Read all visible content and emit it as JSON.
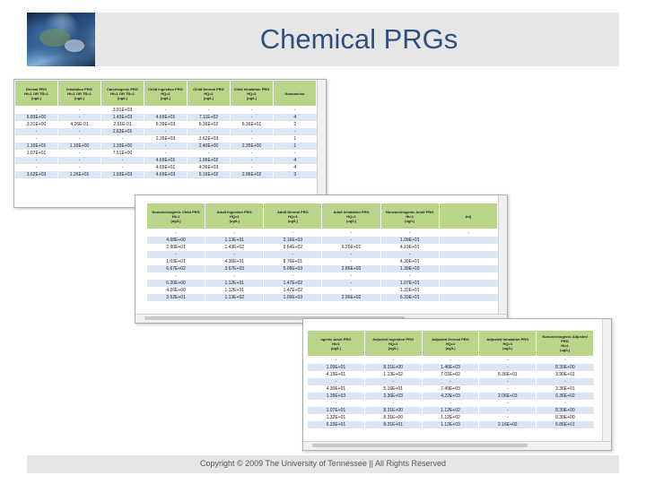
{
  "slide": {
    "title": "Chemical PRGs",
    "footer": "Copyright © 2009 The University of Tennessee || All Rights Reserved"
  },
  "table1": {
    "headers": [
      [
        "Dermal PRG",
        "HI=1 OR TR=1",
        "(ug/L)"
      ],
      [
        "Inhalation PRG",
        "HI=1 OR TR=1",
        "(ug/L)"
      ],
      [
        "Carcinogenic PRG",
        "HI=1 OR TR=1",
        "(ug/L)"
      ],
      [
        "Child Ingestion PRG",
        "HQ=1",
        "(ug/L)"
      ],
      [
        "Child Dermal PRG",
        "HQ=1",
        "(ug/L)"
      ],
      [
        "Child Inhalation PRG",
        "HQ=1",
        "(ug/L)"
      ],
      [
        "Noncarcino",
        "",
        ""
      ]
    ],
    "rows": [
      [
        "-",
        "-",
        "3.91E+03",
        "-",
        "-",
        "-",
        "-"
      ],
      [
        "6.83E+00",
        "-",
        "1.43E+03",
        "4.69E+01",
        "7.11E+02",
        "-",
        "4"
      ],
      [
        "3.31E+00",
        "4.26E-01",
        "2.51E-01",
        "6.39E+03",
        "6.36E+02",
        "6.36E+01",
        "2"
      ],
      [
        "-",
        "-",
        "2.63E+01",
        "-",
        "-",
        "-",
        "-"
      ],
      [
        "-",
        "-",
        "-",
        "2.35E+03",
        "3.62E+03",
        "-",
        "1"
      ],
      [
        "1.10E+01",
        "1.10E+00",
        "1.33E+00",
        "-",
        "2.40E+00",
        "2.35E+00",
        "1"
      ],
      [
        "1.07E+01",
        "-",
        "7.51E+00",
        "-",
        "-",
        "-",
        "-"
      ],
      [
        "-",
        "-",
        "-",
        "4.69E+01",
        "1.96E+02",
        "-",
        "4"
      ],
      [
        "-",
        "-",
        "-",
        "4.69E+01",
        "4.36E+03",
        "-",
        "4"
      ],
      [
        "3.62E+03",
        "1.26E+01",
        "1.93E+03",
        "4.69E+03",
        "5.16E+02",
        "2.96E+02",
        "3"
      ]
    ]
  },
  "table2": {
    "headers": [
      [
        "Noncarcinogenic Child PRG",
        "HI=1",
        "(ug/L)"
      ],
      [
        "Adult Ingestion PRG",
        "HQ=1",
        "(ug/L)"
      ],
      [
        "Adult Dermal PRG",
        "HQ=1",
        "(ug/L)"
      ],
      [
        "Adult Inhalation PRG",
        "HQ=1",
        "(ug/L)"
      ],
      [
        "Noncarcinogenic Adult PRG",
        "HI=1",
        "(ug/L)"
      ],
      [
        "Adj",
        "",
        ""
      ]
    ],
    "rows": [
      [
        "-",
        "-",
        "-",
        "-",
        "-",
        "-"
      ],
      [
        "4.68E+00",
        "1.13E+01",
        "2.16E+03",
        "-",
        "1.09E+01",
        ""
      ],
      [
        "2.90E+01",
        "1.43E+02",
        "9.64E+02",
        "6.26E+01",
        "4.19E+01",
        ""
      ],
      [
        "-",
        "-",
        "-",
        "-",
        "-",
        ""
      ],
      [
        "1.03E+01",
        "4.36E+01",
        "8.76E+01",
        "-",
        "4.30E+01",
        ""
      ],
      [
        "6.67E+02",
        "3.67E+03",
        "5.08E+03",
        "2.86E+03",
        "1.39E+03",
        ""
      ],
      [
        "-",
        "-",
        "-",
        "-",
        "-",
        ""
      ],
      [
        "6.20E+00",
        "1.12E+01",
        "1.47E+02",
        "-",
        "1.07E+01",
        ""
      ],
      [
        "4.26E+00",
        "1.12E+01",
        "1.47E+02",
        "-",
        "1.32E+01",
        ""
      ],
      [
        "3.52E+01",
        "1.13E+02",
        "1.09E+03",
        "2.96E+02",
        "6.33E+01",
        ""
      ]
    ]
  },
  "table3": {
    "headers": [
      [
        "ogenic Adult PRG",
        "HI=1",
        "(ug/L)"
      ],
      [
        "Adjusted Ingestion PRG",
        "HQ=1",
        "(ug/L)"
      ],
      [
        "Adjusted Dermal PRG",
        "HQ=1",
        "(ug/L)"
      ],
      [
        "Adjusted Inhalation PRG",
        "HQ=1",
        "(ug/L)"
      ],
      [
        "Noncarcinogenic Adjusted PRG",
        "HI=1",
        "(ug/L)"
      ]
    ],
    "rows": [
      [
        "-",
        "-",
        "-",
        "-",
        "-"
      ],
      [
        "1.09E+01",
        "8.31E+00",
        "1.46E+03",
        "-",
        "8.30E+00"
      ],
      [
        "4.19E+01",
        "1.13E+02",
        "7.01E+02",
        "6.36E+01",
        "3.90E+01"
      ],
      [
        "-",
        "-",
        "-",
        "-",
        "-"
      ],
      [
        "4.30E+01",
        "5.16E+01",
        "7.49E+03",
        "-",
        "3.36E+01"
      ],
      [
        "1.39E+03",
        "2.36E+03",
        "4.22E+03",
        "2.06E+03",
        "6.36E+02"
      ],
      [
        "-",
        "-",
        "-",
        "-",
        "-"
      ],
      [
        "1.07E+01",
        "8.31E+00",
        "1.12E+02",
        "-",
        "8.30E+00"
      ],
      [
        "1.32E+01",
        "8.31E+00",
        "1.12E+02",
        "-",
        "8.30E+00"
      ],
      [
        "6.33E+01",
        "8.31E+01",
        "1.12E+03",
        "2.16E+02",
        "5.86E+01"
      ]
    ]
  }
}
